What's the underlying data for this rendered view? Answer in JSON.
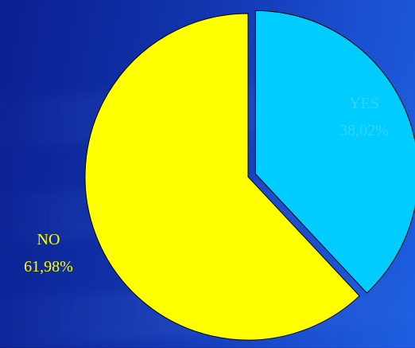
{
  "chart_data": {
    "type": "pie",
    "slices": [
      {
        "label": "YES",
        "value": 38.02,
        "value_text": "38,02%",
        "color": "#00ccff",
        "label_color": "#2fd6ff",
        "exploded": true
      },
      {
        "label": "NO",
        "value": 61.98,
        "value_text": "61,98%",
        "color": "#ffff00",
        "label_color": "#ffff00",
        "exploded": false
      }
    ],
    "start_angle_deg": 0,
    "direction": "clockwise",
    "legend": "none",
    "background_color": "#1236b0"
  }
}
